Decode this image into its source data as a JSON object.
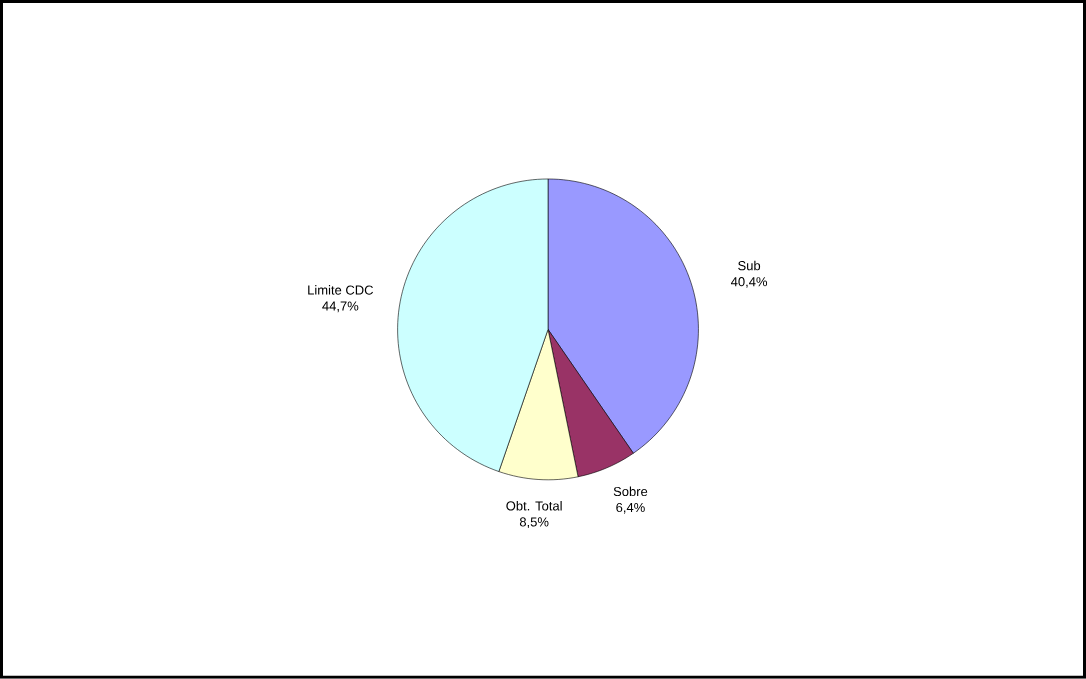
{
  "chart_data": {
    "type": "pie",
    "categories": [
      "Sub",
      "Sobre",
      "Obt. Total",
      "Limite CDC"
    ],
    "values": [
      40.4,
      6.4,
      8.5,
      44.7
    ],
    "value_labels": [
      "40,4%",
      "6,4%",
      "8,5%",
      "44,7%"
    ],
    "colors": [
      "#9999ff",
      "#993366",
      "#ffffcc",
      "#ccffff"
    ]
  }
}
